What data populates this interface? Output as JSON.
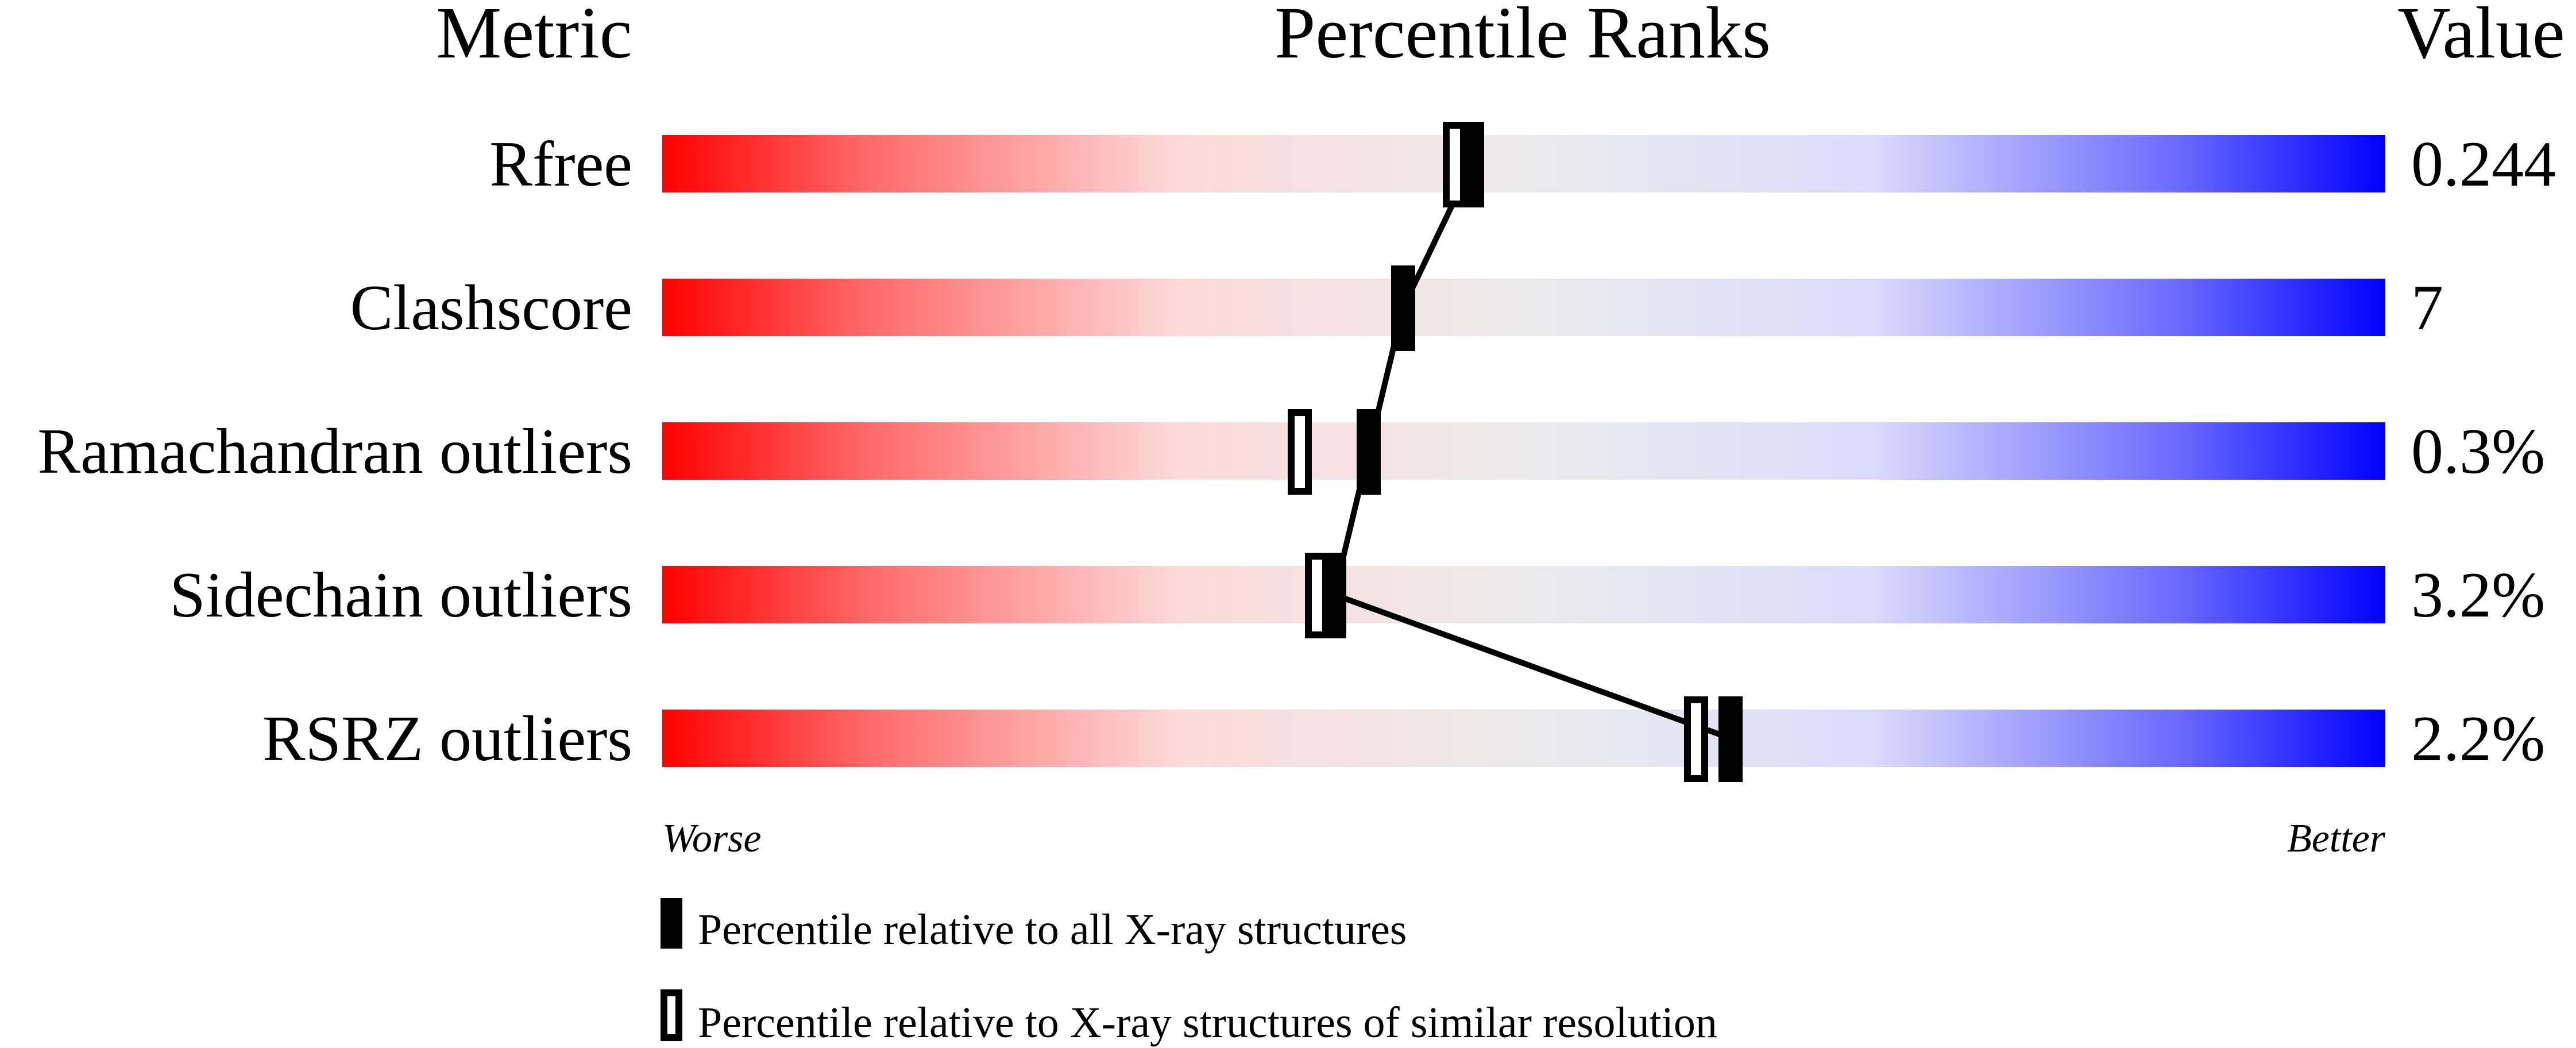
{
  "chart_data": {
    "type": "bar",
    "headers": {
      "metric": "Metric",
      "ranks": "Percentile Ranks",
      "value": "Value"
    },
    "xlim": [
      0,
      100
    ],
    "rows": [
      {
        "metric": "Rfree",
        "value": "0.244",
        "percentile_all": 47,
        "percentile_similar": 46
      },
      {
        "metric": "Clashscore",
        "value": "7",
        "percentile_all": 43,
        "percentile_similar": null
      },
      {
        "metric": "Ramachandran outliers",
        "value": "0.3%",
        "percentile_all": 41,
        "percentile_similar": 37
      },
      {
        "metric": "Sidechain outliers",
        "value": "3.2%",
        "percentile_all": 39,
        "percentile_similar": 38
      },
      {
        "metric": "RSRZ outliers",
        "value": "2.2%",
        "percentile_all": 62,
        "percentile_similar": 60
      }
    ],
    "axis_labels": {
      "left": "Worse",
      "right": "Better"
    },
    "legend": [
      {
        "marker": "filled",
        "label": "Percentile relative to all X-ray structures"
      },
      {
        "marker": "open",
        "label": "Percentile relative to X-ray structures of similar resolution"
      }
    ],
    "colors": {
      "worse": "#ff0000",
      "middle": "#ebebeb",
      "better": "#0000ff"
    }
  }
}
